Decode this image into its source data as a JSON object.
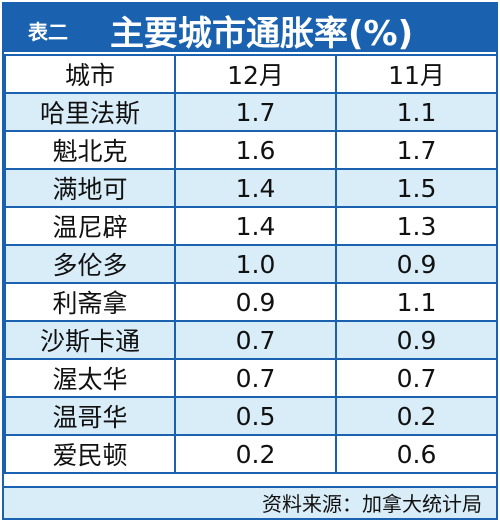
{
  "header": {
    "tag": "表二",
    "title": "主要城市通胀率(%)"
  },
  "table": {
    "columns": [
      "城市",
      "12月",
      "11月"
    ],
    "rows": [
      [
        "哈里法斯",
        "1.7",
        "1.1"
      ],
      [
        "魁北克",
        "1.6",
        "1.7"
      ],
      [
        "满地可",
        "1.4",
        "1.5"
      ],
      [
        "温尼辟",
        "1.4",
        "1.3"
      ],
      [
        "多伦多",
        "1.0",
        "0.9"
      ],
      [
        "利斋拿",
        "0.9",
        "1.1"
      ],
      [
        "沙斯卡通",
        "0.7",
        "0.9"
      ],
      [
        "渥太华",
        "0.7",
        "0.7"
      ],
      [
        "温哥华",
        "0.5",
        "0.2"
      ],
      [
        "爱民顿",
        "0.2",
        "0.6"
      ]
    ]
  },
  "footer": "资料来源：加拿大统计局"
}
